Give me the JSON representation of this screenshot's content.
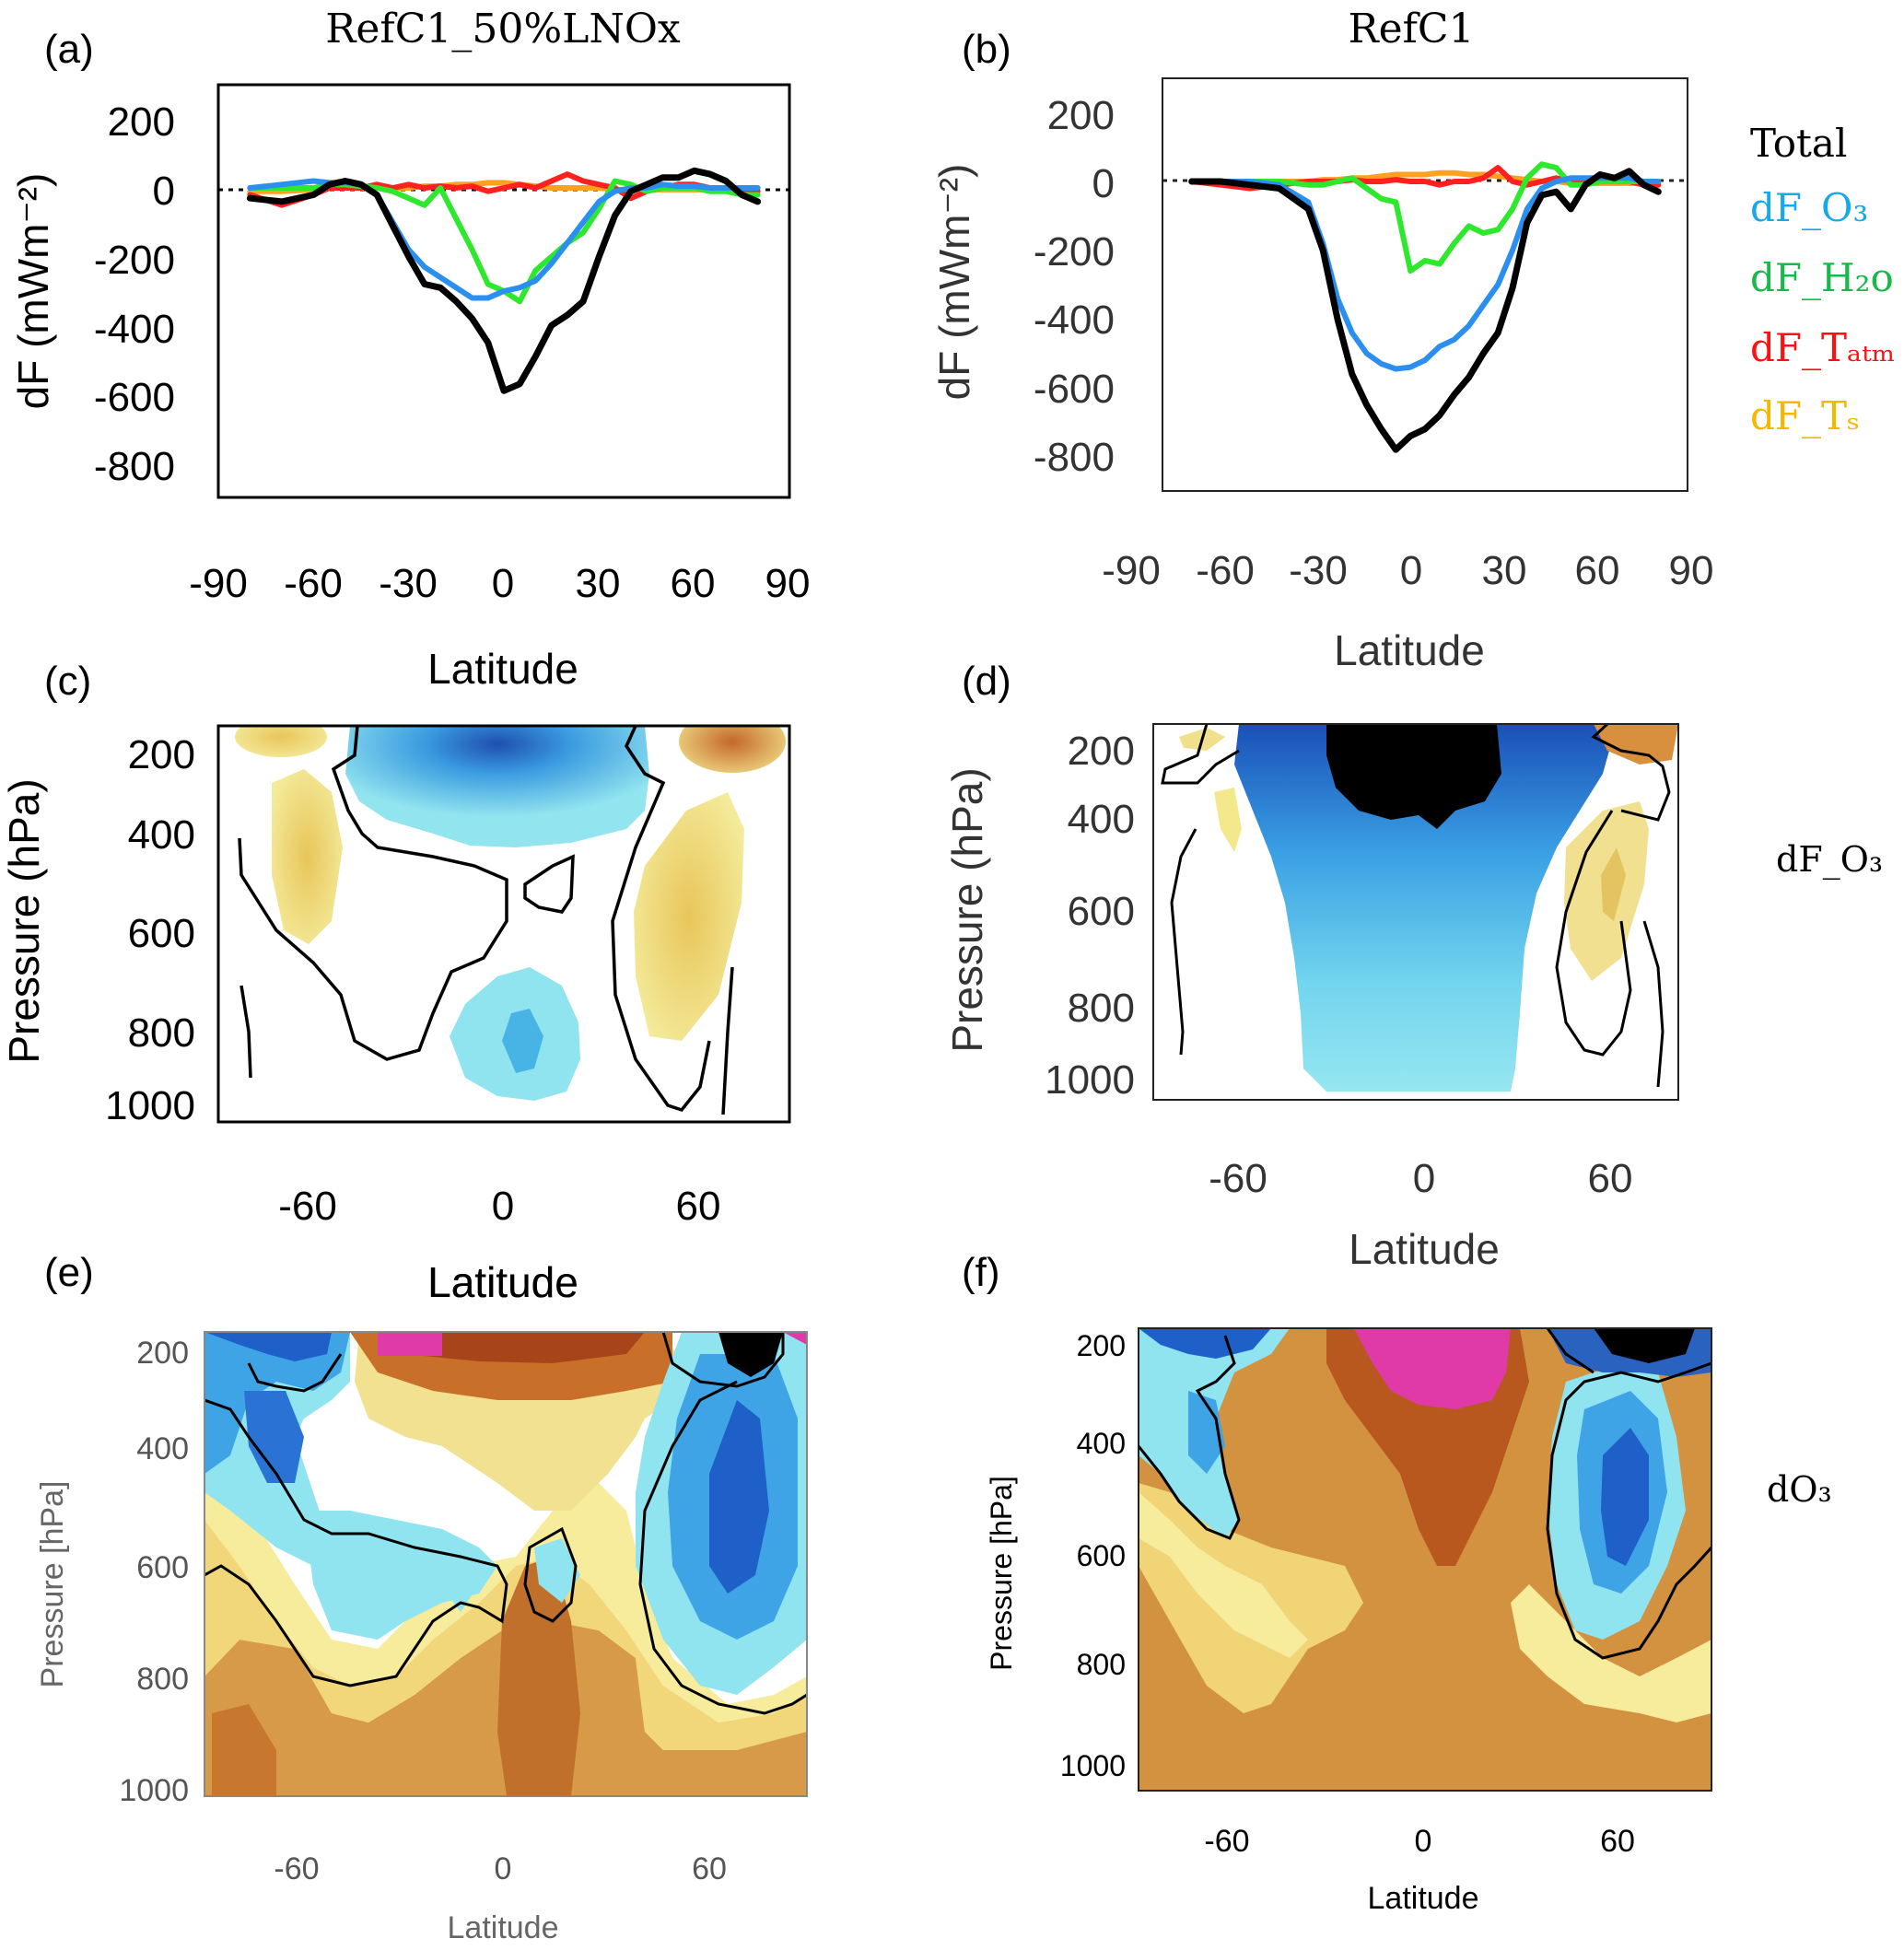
{
  "colors": {
    "total": "#000000",
    "dF_O3": "#2b8ff0",
    "dF_H2O": "#2ee82e",
    "dF_Tatm": "#ff2020",
    "dF_Ts": "#ffa020",
    "neg_light": "#8fe6f0",
    "neg_mid": "#3aa8e8",
    "neg_dark": "#1f5fc8",
    "pos_light": "#f2e690",
    "pos_mid": "#e0a84a",
    "pos_dark": "#b0581e",
    "extreme_pos": "#e03aa8"
  },
  "chart_data": [
    {
      "panel": "(a)",
      "type": "line",
      "title": "RefC1_50%LNOx",
      "xlabel": "Latitude",
      "ylabel": "dF (mWm⁻²)",
      "xlim": [
        -90,
        90
      ],
      "ylim": [
        -900,
        300
      ],
      "xticks": [
        "-90",
        "-60",
        "-30",
        "0",
        "30",
        "60",
        "90"
      ],
      "yticks": [
        "200",
        "0",
        "-200",
        "-400",
        "-600",
        "-800"
      ],
      "series": [
        {
          "name": "Total",
          "key": "total",
          "x": [
            -80,
            -70,
            -60,
            -55,
            -50,
            -45,
            -40,
            -35,
            -30,
            -25,
            -20,
            -15,
            -10,
            -5,
            0,
            5,
            10,
            15,
            20,
            25,
            30,
            35,
            40,
            45,
            50,
            55,
            60,
            65,
            70,
            75,
            80
          ],
          "y": [
            -30,
            -40,
            -20,
            10,
            20,
            10,
            -20,
            -110,
            -200,
            -280,
            -290,
            -330,
            -380,
            -450,
            -590,
            -570,
            -490,
            -400,
            -370,
            -330,
            -200,
            -80,
            -10,
            10,
            30,
            30,
            50,
            40,
            20,
            -20,
            -40
          ]
        },
        {
          "name": "dF_O3",
          "key": "dF_O3",
          "x": [
            -80,
            -70,
            -60,
            -55,
            -50,
            -45,
            -40,
            -35,
            -30,
            -25,
            -20,
            -15,
            -10,
            -5,
            0,
            5,
            10,
            15,
            20,
            25,
            30,
            35,
            40,
            45,
            50,
            55,
            60,
            65,
            70,
            75,
            80
          ],
          "y": [
            0,
            10,
            20,
            15,
            15,
            10,
            -20,
            -100,
            -180,
            -230,
            -260,
            -290,
            -320,
            -320,
            -300,
            -290,
            -270,
            -220,
            -160,
            -100,
            -40,
            -10,
            0,
            0,
            10,
            5,
            5,
            0,
            0,
            0,
            0
          ]
        },
        {
          "name": "dF_H2O",
          "key": "dF_H2O",
          "x": [
            -80,
            -70,
            -60,
            -55,
            -50,
            -45,
            -40,
            -35,
            -30,
            -25,
            -20,
            -15,
            -10,
            -5,
            0,
            5,
            10,
            15,
            20,
            25,
            30,
            35,
            40,
            45,
            50,
            55,
            60,
            65,
            70,
            75,
            80
          ],
          "y": [
            0,
            0,
            0,
            10,
            10,
            5,
            0,
            -10,
            -30,
            -50,
            0,
            -90,
            -180,
            -280,
            -300,
            -330,
            -240,
            -200,
            -160,
            -130,
            -60,
            20,
            10,
            -10,
            0,
            0,
            0,
            -10,
            -10,
            -20,
            -20
          ]
        },
        {
          "name": "dF_Tatm",
          "key": "dF_Tatm",
          "x": [
            -80,
            -70,
            -60,
            -55,
            -50,
            -45,
            -40,
            -35,
            -30,
            -25,
            -20,
            -15,
            -10,
            -5,
            0,
            5,
            10,
            15,
            20,
            25,
            30,
            35,
            40,
            45,
            50,
            55,
            60,
            65,
            70,
            75,
            80
          ],
          "y": [
            -20,
            -50,
            -20,
            0,
            0,
            0,
            10,
            0,
            10,
            0,
            5,
            0,
            5,
            -10,
            0,
            10,
            0,
            20,
            40,
            20,
            10,
            0,
            -30,
            -10,
            0,
            10,
            10,
            0,
            0,
            -10,
            -10
          ]
        },
        {
          "name": "dF_Ts",
          "key": "dF_Ts",
          "x": [
            -80,
            -70,
            -60,
            -55,
            -50,
            -45,
            -40,
            -35,
            -30,
            -25,
            -20,
            -15,
            -10,
            -5,
            0,
            5,
            10,
            15,
            20,
            25,
            30,
            35,
            40,
            45,
            50,
            55,
            60,
            65,
            70,
            75,
            80
          ],
          "y": [
            -10,
            -10,
            -5,
            0,
            0,
            0,
            0,
            0,
            0,
            5,
            5,
            10,
            10,
            15,
            15,
            10,
            5,
            0,
            0,
            0,
            0,
            -5,
            -5,
            -5,
            -5,
            -5,
            -5,
            -5,
            -5,
            -5,
            -5
          ]
        }
      ]
    },
    {
      "panel": "(b)",
      "type": "line",
      "title": "RefC1",
      "xlabel": "Latitude",
      "ylabel": "dF (mWm⁻²)",
      "xlim": [
        -90,
        90
      ],
      "ylim": [
        -900,
        300
      ],
      "xticks": [
        "-90",
        "-60",
        "-30",
        "0",
        "30",
        "60",
        "90"
      ],
      "yticks": [
        "200",
        "0",
        "-200",
        "-400",
        "-600",
        "-800"
      ],
      "legend": [
        "Total",
        "dF_O₃",
        "dF_H₂o",
        "dF_Tₐₜₘ",
        "dF_Tₛ"
      ],
      "series": [
        {
          "name": "Total",
          "key": "total",
          "x": [
            -80,
            -70,
            -60,
            -50,
            -40,
            -35,
            -30,
            -25,
            -20,
            -15,
            -10,
            -5,
            0,
            5,
            10,
            15,
            20,
            25,
            30,
            35,
            40,
            45,
            50,
            55,
            60,
            65,
            70,
            75,
            80
          ],
          "y": [
            0,
            0,
            -10,
            -20,
            -80,
            -200,
            -400,
            -560,
            -650,
            -720,
            -780,
            -740,
            -720,
            -680,
            -620,
            -570,
            -500,
            -440,
            -310,
            -120,
            -40,
            -30,
            -80,
            -10,
            20,
            10,
            30,
            -10,
            -30
          ]
        },
        {
          "name": "dF_O3",
          "key": "dF_O3",
          "x": [
            -80,
            -70,
            -60,
            -50,
            -40,
            -35,
            -30,
            -25,
            -20,
            -15,
            -10,
            -5,
            0,
            5,
            10,
            15,
            20,
            25,
            30,
            35,
            40,
            45,
            50,
            55,
            60,
            65,
            70,
            75,
            80
          ],
          "y": [
            0,
            0,
            0,
            -10,
            -60,
            -180,
            -340,
            -440,
            -500,
            -530,
            -545,
            -540,
            -520,
            -480,
            -460,
            -420,
            -360,
            -300,
            -200,
            -80,
            -20,
            0,
            10,
            10,
            10,
            10,
            10,
            0,
            0
          ]
        },
        {
          "name": "dF_H2O",
          "key": "dF_H2O",
          "x": [
            -80,
            -70,
            -60,
            -50,
            -40,
            -35,
            -30,
            -25,
            -20,
            -15,
            -10,
            -5,
            0,
            5,
            10,
            15,
            20,
            25,
            30,
            35,
            40,
            45,
            50,
            55,
            60,
            65,
            70,
            75,
            80
          ],
          "y": [
            0,
            0,
            0,
            0,
            -10,
            -10,
            0,
            10,
            -20,
            -50,
            -60,
            -260,
            -230,
            -240,
            -180,
            -130,
            -150,
            -140,
            -80,
            10,
            50,
            40,
            -10,
            -10,
            0,
            0,
            0,
            0,
            0
          ]
        },
        {
          "name": "dF_Tatm",
          "key": "dF_Tatm",
          "x": [
            -80,
            -70,
            -60,
            -50,
            -40,
            -35,
            -30,
            -25,
            -20,
            -15,
            -10,
            -5,
            0,
            5,
            10,
            15,
            20,
            25,
            30,
            35,
            40,
            45,
            50,
            55,
            60,
            65,
            70,
            75,
            80
          ],
          "y": [
            0,
            -10,
            -20,
            -10,
            0,
            0,
            0,
            5,
            0,
            0,
            5,
            0,
            0,
            -10,
            0,
            0,
            10,
            40,
            0,
            -10,
            0,
            10,
            0,
            0,
            0,
            0,
            0,
            -10,
            -10
          ]
        },
        {
          "name": "dF_Ts",
          "key": "dF_Ts",
          "x": [
            -80,
            -70,
            -60,
            -50,
            -40,
            -35,
            -30,
            -25,
            -20,
            -15,
            -10,
            -5,
            0,
            5,
            10,
            15,
            20,
            25,
            30,
            35,
            40,
            45,
            50,
            55,
            60,
            65,
            70,
            75,
            80
          ],
          "y": [
            0,
            0,
            0,
            0,
            0,
            5,
            5,
            10,
            10,
            15,
            20,
            20,
            20,
            25,
            25,
            20,
            20,
            15,
            10,
            5,
            0,
            0,
            -5,
            -5,
            -5,
            -5,
            -5,
            -5,
            -5
          ]
        }
      ]
    },
    {
      "panel": "(c)",
      "type": "heatmap",
      "xlabel": "Latitude",
      "ylabel": "Pressure (hPa)",
      "xticks": [
        "-60",
        "0",
        "60"
      ],
      "yticks": [
        "200",
        "400",
        "600",
        "800",
        "1000"
      ],
      "xlim": [
        -88,
        88
      ],
      "ylim": [
        1000,
        150
      ]
    },
    {
      "panel": "(d)",
      "type": "heatmap",
      "xlabel": "Latitude",
      "ylabel": "Pressure (hPa)",
      "xticks": [
        "-60",
        "0",
        "60"
      ],
      "yticks": [
        "200",
        "400",
        "600",
        "800",
        "1000"
      ],
      "xlim": [
        -88,
        88
      ],
      "ylim": [
        1000,
        150
      ]
    },
    {
      "panel": "(e)",
      "type": "heatmap",
      "xlabel": "Latitude",
      "ylabel": "Pressure [hPa]",
      "xticks": [
        "-60",
        "0",
        "60"
      ],
      "yticks": [
        "200",
        "400",
        "600",
        "800",
        "1000"
      ],
      "xlim": [
        -88,
        88
      ],
      "ylim": [
        1000,
        150
      ]
    },
    {
      "panel": "(f)",
      "type": "heatmap",
      "xlabel": "Latitude",
      "ylabel": "Pressure [hPa]",
      "xticks": [
        "-60",
        "0",
        "60"
      ],
      "yticks": [
        "200",
        "400",
        "600",
        "800",
        "1000"
      ],
      "xlim": [
        -88,
        88
      ],
      "ylim": [
        1000,
        150
      ]
    }
  ],
  "row_labels": {
    "contour_row1": "dF_O₃",
    "contour_row2": "dO₃"
  }
}
